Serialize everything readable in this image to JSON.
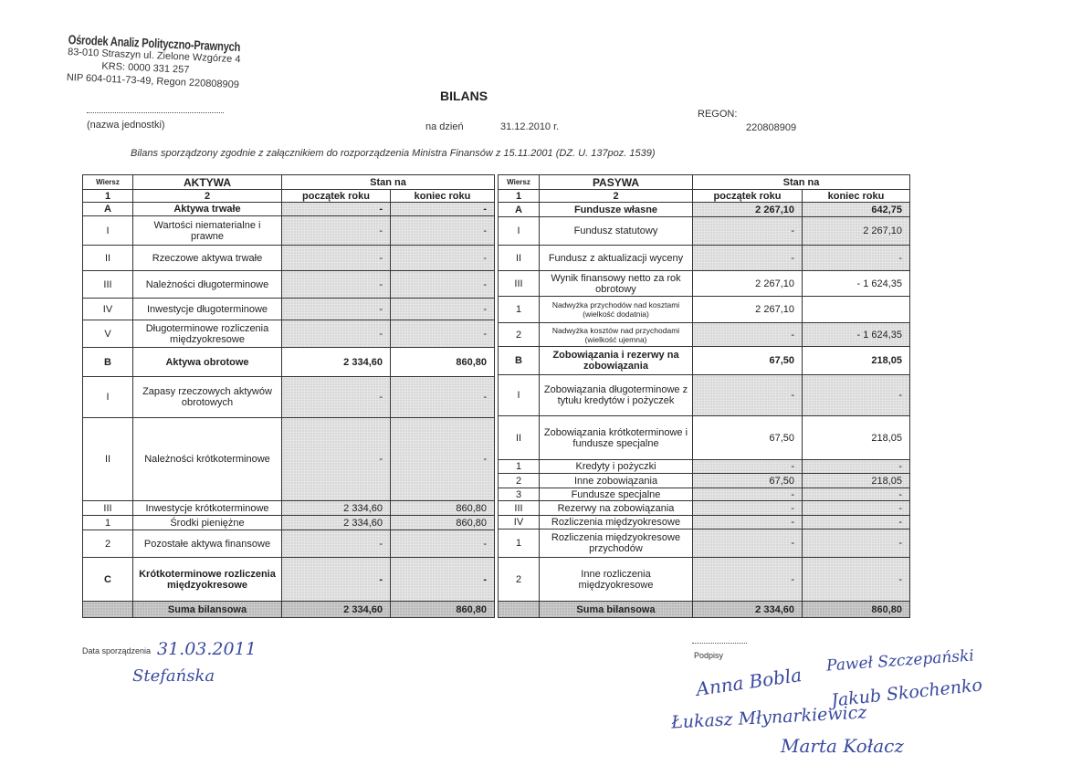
{
  "stamp": {
    "organization": "Ośrodek Analiz Polityczno-Prawnych",
    "address": "83-010 Straszyn ul. Zielone Wzgórze 4",
    "krs": "KRS: 0000 331 257",
    "nip_regon": "NIP 604-011-73-49, Regon 220808909"
  },
  "header": {
    "title": "BILANS",
    "unit_name_label": "(nazwa jednostki)",
    "date_label": "na dzień",
    "date_value": "31.12.2010 r.",
    "regon_label": "REGON:",
    "regon_value": "220808909",
    "basis": "Bilans sporządzony zgodnie z załącznikiem do rozporządzenia Ministra Finansów z 15.11.2001 (DZ. U. 137poz. 1539)"
  },
  "aktywa": {
    "headers": {
      "row": "Wiersz",
      "name": "AKTYWA",
      "state": "Stan na",
      "num1": "1",
      "num2": "2",
      "start": "początek roku",
      "end": "koniec roku"
    },
    "rows": [
      {
        "nr": "A",
        "label": "Aktywa trwałe",
        "start": "-",
        "end": "-",
        "bold": true,
        "shaded": true
      },
      {
        "nr": "I",
        "label": "Wartości niematerialne i prawne",
        "start": "-",
        "end": "-",
        "shaded": true
      },
      {
        "nr": "II",
        "label": "Rzeczowe aktywa trwałe",
        "start": "-",
        "end": "-",
        "shaded": true
      },
      {
        "nr": "III",
        "label": "Należności długoterminowe",
        "start": "-",
        "end": "-",
        "shaded": true
      },
      {
        "nr": "IV",
        "label": "Inwestycje długoterminowe",
        "start": "-",
        "end": "-",
        "shaded": true
      },
      {
        "nr": "V",
        "label": "Długoterminowe rozliczenia międzyokresowe",
        "start": "-",
        "end": "-",
        "shaded": true
      },
      {
        "nr": "B",
        "label": "Aktywa obrotowe",
        "start": "2 334,60",
        "end": "860,80",
        "bold": true,
        "shaded": false
      },
      {
        "nr": "I",
        "label": "Zapasy rzeczowych aktywów obrotowych",
        "start": "-",
        "end": "-",
        "shaded": true
      },
      {
        "nr": "II",
        "label": "Należności krótkoterminowe",
        "start": "-",
        "end": "-",
        "shaded": true
      },
      {
        "nr": "III",
        "label": "Inwestycje krótkoterminowe",
        "start": "2 334,60",
        "end": "860,80",
        "shaded": true
      },
      {
        "nr": "1",
        "label": "Środki pieniężne",
        "start": "2 334,60",
        "end": "860,80",
        "shaded": true
      },
      {
        "nr": "2",
        "label": "Pozostałe aktywa finansowe",
        "start": "-",
        "end": "-",
        "shaded": true
      },
      {
        "nr": "C",
        "label": "Krótkoterminowe rozliczenia międzyokresowe",
        "start": "-",
        "end": "-",
        "bold": true,
        "shaded": true
      },
      {
        "nr": "",
        "label": "Suma bilansowa",
        "start": "2 334,60",
        "end": "860,80",
        "sum": true
      }
    ]
  },
  "pasywa": {
    "headers": {
      "row": "Wiersz",
      "name": "PASYWA",
      "state": "Stan na",
      "num1": "1",
      "num2": "2",
      "start": "początek roku",
      "end": "koniec roku"
    },
    "rows": [
      {
        "nr": "A",
        "label": "Fundusze własne",
        "start": "2 267,10",
        "end": "642,75",
        "bold": true,
        "shaded": true
      },
      {
        "nr": "I",
        "label": "Fundusz statutowy",
        "start": "-",
        "end": "2 267,10",
        "shaded": true
      },
      {
        "nr": "II",
        "label": "Fundusz z aktualizacji wyceny",
        "start": "-",
        "end": "-",
        "shaded": true
      },
      {
        "nr": "III",
        "label": "Wynik finansowy netto za rok obrotowy",
        "start": "2 267,10",
        "end": "- 1 624,35",
        "shaded": false
      },
      {
        "nr": "1",
        "label": "Nadwyżka przychodów nad kosztami (wielkość dodatnia)",
        "start": "2 267,10",
        "end": "",
        "small": true,
        "shaded": false
      },
      {
        "nr": "2",
        "label": "Nadwyżka kosztów nad przychodami (wielkość ujemna)",
        "start": "-",
        "end": "- 1 624,35",
        "small": true,
        "shaded": true
      },
      {
        "nr": "B",
        "label": "Zobowiązania i rezerwy na zobowiązania",
        "start": "67,50",
        "end": "218,05",
        "bold": true,
        "shaded": false
      },
      {
        "nr": "I",
        "label": "Zobowiązania długoterminowe z tytułu kredytów i pożyczek",
        "start": "-",
        "end": "-",
        "shaded": true
      },
      {
        "nr": "II",
        "label": "Zobowiązania krótkoterminowe i fundusze specjalne",
        "start": "67,50",
        "end": "218,05",
        "shaded": false
      },
      {
        "nr": "1",
        "label": "Kredyty i pożyczki",
        "start": "-",
        "end": "-",
        "shaded": true
      },
      {
        "nr": "2",
        "label": "Inne zobowiązania",
        "start": "67,50",
        "end": "218,05",
        "shaded": true
      },
      {
        "nr": "3",
        "label": "Fundusze specjalne",
        "start": "-",
        "end": "-",
        "shaded": true
      },
      {
        "nr": "III",
        "label": "Rezerwy na zobowiązania",
        "start": "-",
        "end": "-",
        "shaded": true
      },
      {
        "nr": "IV",
        "label": "Rozliczenia międzyokresowe",
        "start": "-",
        "end": "-",
        "shaded": true
      },
      {
        "nr": "1",
        "label": "Rozliczenia międzyokresowe przychodów",
        "start": "-",
        "end": "-",
        "shaded": true
      },
      {
        "nr": "2",
        "label": "Inne rozliczenia międzyokresowe",
        "start": "-",
        "end": "-",
        "shaded": true
      },
      {
        "nr": "",
        "label": "Suma bilansowa",
        "start": "2 334,60",
        "end": "860,80",
        "sum": true
      }
    ]
  },
  "footer": {
    "date_label": "Data sporządzenia",
    "date_handwritten": "31.03.2011",
    "preparer_signature": "Stefańska",
    "signatures_label": "Podpisy",
    "signatures": [
      "Anna Bobla",
      "Paweł Szczepański",
      "Jakub Skochenko",
      "Łukasz Młynarkiewicz",
      "Marta Kołacz"
    ]
  },
  "colors": {
    "ink": "#222222",
    "handwriting": "#3a4aa0",
    "shading": "#e6e6e6"
  }
}
